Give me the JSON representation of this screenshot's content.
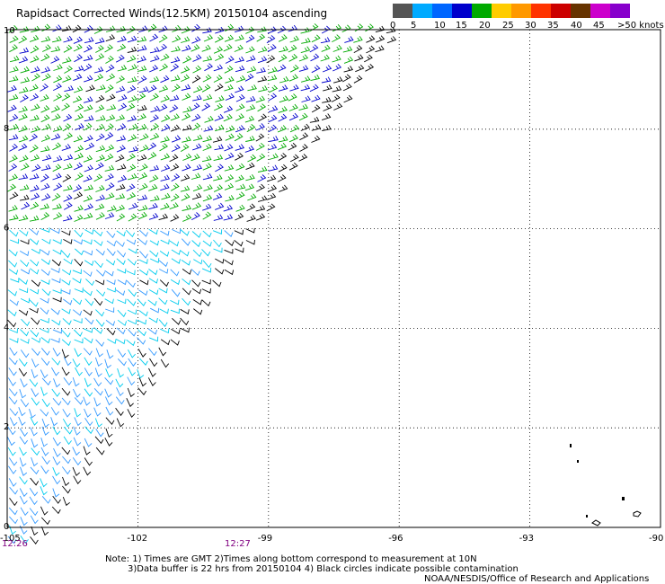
{
  "title": "Rapidsact Corrected Winds(12.5KM) 20150104 ascending",
  "scale": {
    "colors": [
      "#555555",
      "#00aaff",
      "#0066ff",
      "#0000cc",
      "#00aa00",
      "#ffcc00",
      "#ff9900",
      "#ff3300",
      "#cc0000",
      "#663300",
      "#cc00cc",
      "#8800cc"
    ],
    "labels": [
      "0",
      "5",
      "10",
      "15",
      "20",
      "25",
      "30",
      "35",
      "40",
      "45",
      ">50 knots"
    ]
  },
  "map": {
    "x_ticks": [
      "-105",
      "-102",
      "-99",
      "-96",
      "-93",
      "-90"
    ],
    "y_ticks": [
      "0",
      "2",
      "4",
      "6",
      "8",
      "10"
    ],
    "lon_range": [
      -105,
      -90
    ],
    "lat_range": [
      0,
      10
    ],
    "grid": true
  },
  "times": [
    "12:26",
    "12:27"
  ],
  "notes": {
    "line1": "Note: 1) Times are GMT 2)Times along bottom correspond to measurement at 10N",
    "line2": "3)Data buffer is 22 hrs from 20150104 4) Black circles indicate possible contamination",
    "line3": "NOAA/NESDIS/Office of Research and Applications"
  },
  "colors": {
    "green": "#00aa00",
    "blue": "#0000cc",
    "black": "#000000",
    "cyan": "#00ccee",
    "lightblue": "#3399ff"
  }
}
